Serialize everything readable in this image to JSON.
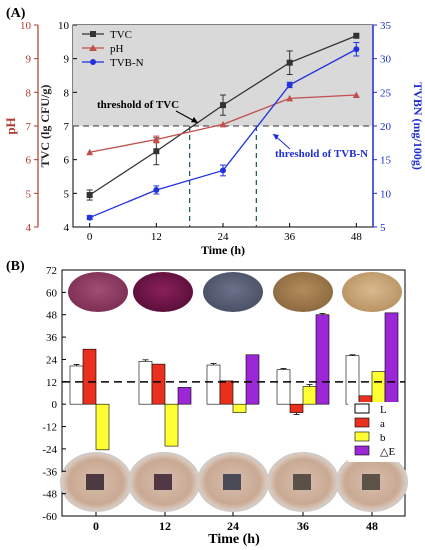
{
  "chart_data": [
    {
      "panel_label": "(A)",
      "type": "line",
      "xlabel": "Time (h)",
      "x_ticks": [
        "0",
        "12",
        "24",
        "36",
        "48"
      ],
      "x": [
        0,
        12,
        24,
        36,
        48
      ],
      "xlim": [
        -3,
        51
      ],
      "y_axes": [
        {
          "label": "pH",
          "ticks": [
            "4",
            "5",
            "6",
            "7",
            "8",
            "9",
            "10"
          ],
          "lim": [
            4,
            10
          ],
          "color": "#b03a2e"
        },
        {
          "label": "TVC (lg CFU/g)",
          "ticks": [
            "4",
            "5",
            "6",
            "7",
            "8",
            "9",
            "10"
          ],
          "lim": [
            4,
            10
          ],
          "color": "#222222"
        },
        {
          "label": "TVBN (mg/100g)",
          "ticks": [
            "5",
            "10",
            "15",
            "20",
            "25",
            "30",
            "35"
          ],
          "lim": [
            5,
            35
          ],
          "color": "#1f2fd0"
        }
      ],
      "series": [
        {
          "name": "TVC",
          "axis": "tvc",
          "color": "#333333",
          "marker": "square",
          "values": [
            4.95,
            6.25,
            7.62,
            8.88,
            9.68
          ],
          "errors": [
            0.15,
            0.4,
            0.3,
            0.35,
            0.05
          ]
        },
        {
          "name": "pH",
          "axis": "ph",
          "color": "#c0504d",
          "marker": "triangle",
          "values": [
            6.22,
            6.6,
            7.05,
            7.82,
            7.92
          ],
          "errors": [
            0,
            0.1,
            0,
            0,
            0
          ]
        },
        {
          "name": "TVB-N",
          "axis": "tvbn",
          "color": "#2233dd",
          "marker": "circle",
          "values": [
            6.4,
            10.5,
            13.4,
            26.1,
            31.4
          ],
          "errors": [
            0.3,
            0.6,
            0.8,
            0.4,
            1.0
          ]
        }
      ],
      "threshold_value": 7,
      "shade_color": "#d9d9d9",
      "annotations": [
        {
          "text": "threshold of TVC",
          "x": 18,
          "color": "#000000"
        },
        {
          "text": "threshold of TVB-N",
          "x": 30,
          "color": "#1f2fd0"
        }
      ],
      "legend_position": "top-left"
    },
    {
      "panel_label": "(B)",
      "type": "bar",
      "xlabel": "Time (h)",
      "categories": [
        "0",
        "12",
        "24",
        "36",
        "48"
      ],
      "y_ticks": [
        "72",
        "60",
        "48",
        "36",
        "24",
        "12",
        "0",
        "-12",
        "-24",
        "-36",
        "-48",
        "-60"
      ],
      "ylim": [
        -60,
        72
      ],
      "series": [
        {
          "name": "L",
          "color": "#ffffff",
          "values": [
            20.5,
            23,
            21,
            18.5,
            26
          ],
          "errors": [
            0.8,
            0.8,
            0.8,
            0.6,
            0.5
          ]
        },
        {
          "name": "a",
          "color": "#e8301c",
          "values": [
            29.5,
            21.5,
            12.5,
            -4.5,
            4.5
          ],
          "errors": [
            0,
            0,
            0,
            1,
            0
          ]
        },
        {
          "name": "b",
          "color": "#ffff33",
          "values": [
            -24.5,
            -22.5,
            -4.5,
            9.5,
            17.5
          ],
          "errors": [
            0,
            0,
            0,
            1,
            0
          ]
        },
        {
          "name": "△E",
          "color": "#9c27d6",
          "values": [
            0,
            9,
            26.5,
            48,
            49
          ],
          "errors": [
            0,
            0,
            0,
            0.6,
            0
          ]
        }
      ],
      "threshold_value": 12,
      "legend_position": "right"
    }
  ]
}
